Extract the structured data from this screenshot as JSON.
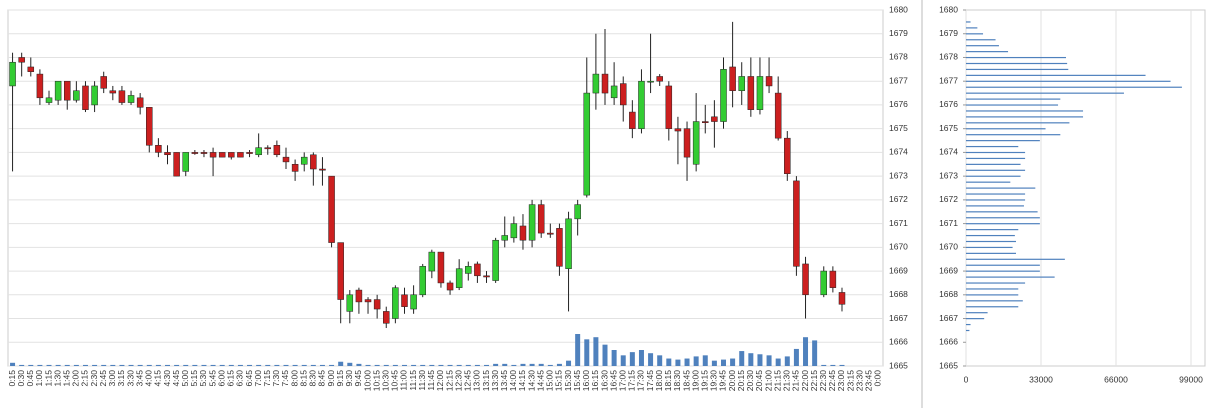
{
  "chart_data": {
    "type": "candlestick",
    "categories": [
      "0:15",
      "0:30",
      "0:45",
      "1:00",
      "1:15",
      "1:30",
      "1:45",
      "2:00",
      "2:15",
      "2:30",
      "2:45",
      "3:00",
      "3:15",
      "3:30",
      "3:45",
      "4:00",
      "4:15",
      "4:30",
      "4:45",
      "5:00",
      "5:15",
      "5:30",
      "5:45",
      "6:00",
      "6:15",
      "6:30",
      "6:45",
      "7:00",
      "7:15",
      "7:30",
      "7:45",
      "8:00",
      "8:15",
      "8:30",
      "8:45",
      "9:00",
      "9:15",
      "9:30",
      "9:45",
      "10:00",
      "10:15",
      "10:30",
      "10:45",
      "11:00",
      "11:15",
      "11:30",
      "11:45",
      "12:00",
      "12:15",
      "12:30",
      "12:45",
      "13:00",
      "13:15",
      "13:30",
      "13:45",
      "14:00",
      "14:15",
      "14:30",
      "14:45",
      "15:00",
      "15:15",
      "15:30",
      "15:45",
      "16:00",
      "16:15",
      "16:30",
      "16:45",
      "17:00",
      "17:15",
      "17:30",
      "17:45",
      "18:00",
      "18:15",
      "18:30",
      "18:45",
      "19:00",
      "19:15",
      "19:30",
      "19:45",
      "20:00",
      "20:15",
      "20:30",
      "20:45",
      "21:00",
      "21:15",
      "21:30",
      "21:45",
      "22:00",
      "22:15",
      "22:30",
      "22:45",
      "23:00",
      "23:15",
      "23:30",
      "23:45",
      "0:00"
    ],
    "open": [
      1676.8,
      1678,
      1677.6,
      1677.3,
      1676.1,
      1676.2,
      1677,
      1676.2,
      1676.8,
      1676,
      1677.2,
      1676.6,
      1676.6,
      1676.1,
      1676.3,
      1675.9,
      1674.3,
      1674,
      1674,
      1673.2,
      1674,
      1674,
      1674,
      1674,
      1674,
      1674,
      1674,
      1673.9,
      1674.2,
      1674.3,
      1673.8,
      1673.5,
      1673.5,
      1673.9,
      1673.3,
      1673,
      1670.2,
      1667.3,
      1668.2,
      1667.8,
      1667.8,
      1667.3,
      1667,
      1668,
      1667.4,
      1668,
      1669,
      1669.8,
      1668.5,
      1668.3,
      1668.9,
      1669.3,
      1668.8,
      1668.6,
      1670.3,
      1670.4,
      1670.9,
      1670.3,
      1671.8,
      1670.6,
      1670.8,
      1669.1,
      1671.2,
      1672.2,
      1676.5,
      1677.3,
      1676.3,
      1676.9,
      1675.7,
      1675,
      1677,
      1677.2,
      1676.8,
      1675,
      1675,
      1673.5,
      1675.3,
      1675.5,
      1675.3,
      1677.6,
      1676.6,
      1677.2,
      1675.8,
      1677.2,
      1676.5,
      1674.6,
      1672.8,
      1669.3,
      null,
      1668,
      1669,
      1668.1,
      null,
      null,
      null,
      null
    ],
    "high": [
      1678.2,
      1678.2,
      1678,
      1677.5,
      1676.6,
      1677,
      1677,
      1677,
      1677,
      1677,
      1677.4,
      1676.8,
      1676.8,
      1676.6,
      1676.5,
      1675.9,
      1674.6,
      1674.3,
      1674,
      1674,
      1674.1,
      1674.1,
      1674.2,
      1674,
      1674,
      1674,
      1674.1,
      1674.8,
      1674.3,
      1674.5,
      1674.2,
      1673.7,
      1674,
      1674,
      1673.8,
      1673,
      1670.2,
      1668.2,
      1668.3,
      1667.9,
      1668,
      1667.5,
      1668.4,
      1668.3,
      1668.4,
      1669.3,
      1669.9,
      1669.8,
      1668.6,
      1669.5,
      1669.4,
      1669.4,
      1669,
      1670.4,
      1671.3,
      1671.3,
      1671.4,
      1672,
      1672,
      1671,
      1671,
      1671.5,
      1672,
      1678,
      1679,
      1679.2,
      1677.8,
      1677.2,
      1676.2,
      1677.5,
      1679,
      1677.3,
      1677,
      1675.5,
      1675.3,
      1676.5,
      1676,
      1676.2,
      1678,
      1679.5,
      1677.8,
      1678,
      1678,
      1678,
      1677.2,
      1674.9,
      1673,
      1669.6,
      null,
      1669.2,
      1669.2,
      1668.3,
      null,
      null,
      null,
      null
    ],
    "low": [
      1673.2,
      1677.2,
      1677.2,
      1676,
      1676,
      1676,
      1675.8,
      1676.1,
      1675.7,
      1675.7,
      1676.5,
      1676.2,
      1676,
      1676,
      1675.6,
      1674,
      1673.8,
      1673.5,
      1673,
      1673,
      1673.9,
      1673.8,
      1673,
      1673.8,
      1673.7,
      1673.8,
      1673.8,
      1673.8,
      1673.9,
      1673.8,
      1673.3,
      1672.8,
      1673.2,
      1672.6,
      1672.6,
      1670,
      1666.8,
      1666.8,
      1667.2,
      1667.2,
      1667,
      1666.6,
      1666.8,
      1667.2,
      1667.2,
      1667.9,
      1668.7,
      1668.3,
      1668,
      1668.2,
      1668.6,
      1668.5,
      1668.5,
      1668.5,
      1670,
      1670.2,
      1669.9,
      1670,
      1670.4,
      1670.4,
      1668.8,
      1667.3,
      1670.5,
      1672.1,
      1675.8,
      1676,
      1676,
      1675.3,
      1674.6,
      1674.8,
      1676.5,
      1676.8,
      1674.5,
      1673.5,
      1672.8,
      1673.2,
      1674.8,
      1674.2,
      1675,
      1675.9,
      1676,
      1675.5,
      1675.6,
      1676.5,
      1674.5,
      1672.8,
      1668.8,
      1667,
      null,
      1667.9,
      1668.1,
      1667.3,
      null,
      null,
      null,
      null
    ],
    "close": [
      1677.8,
      1677.8,
      1677.4,
      1676.3,
      1676.3,
      1677,
      1676.2,
      1676.6,
      1675.8,
      1676.8,
      1676.7,
      1676.5,
      1676.1,
      1676.4,
      1675.9,
      1674.3,
      1674,
      1673.9,
      1673,
      1674,
      1673.95,
      1673.95,
      1673.8,
      1673.8,
      1673.8,
      1673.8,
      1673.95,
      1674.2,
      1674.15,
      1673.9,
      1673.6,
      1673.2,
      1673.8,
      1673.3,
      1673.25,
      1670.2,
      1667.8,
      1668,
      1667.7,
      1667.7,
      1667.4,
      1666.8,
      1668.3,
      1667.5,
      1668,
      1669.2,
      1669.8,
      1668.5,
      1668.2,
      1669.1,
      1669.2,
      1668.8,
      1668.75,
      1670.3,
      1670.5,
      1671,
      1670.3,
      1671.8,
      1670.6,
      1670.55,
      1669.2,
      1671.2,
      1671.8,
      1676.5,
      1677.3,
      1676.5,
      1676.8,
      1676,
      1675,
      1677,
      1677,
      1677,
      1675,
      1674.9,
      1673.8,
      1675.3,
      1675.25,
      1675.3,
      1677.5,
      1676.6,
      1677.2,
      1675.8,
      1677.2,
      1676.8,
      1674.6,
      1673.1,
      1669.2,
      1668,
      null,
      1669,
      1668.3,
      1667.6,
      null,
      null,
      null,
      null
    ],
    "volume": [
      300,
      100,
      100,
      100,
      100,
      100,
      100,
      100,
      100,
      100,
      100,
      100,
      100,
      100,
      100,
      100,
      100,
      100,
      100,
      100,
      100,
      100,
      100,
      100,
      100,
      100,
      100,
      100,
      100,
      100,
      100,
      100,
      100,
      100,
      100,
      100,
      400,
      300,
      200,
      100,
      100,
      100,
      100,
      100,
      100,
      100,
      100,
      100,
      100,
      100,
      100,
      100,
      100,
      200,
      200,
      100,
      200,
      200,
      200,
      100,
      200,
      500,
      3000,
      2500,
      2700,
      2000,
      1500,
      1000,
      1300,
      1500,
      1200,
      1000,
      700,
      600,
      700,
      900,
      1000,
      500,
      600,
      700,
      1400,
      1200,
      1100,
      1000,
      700,
      900,
      1600,
      2700,
      2400,
      100,
      100,
      100,
      null,
      null,
      null,
      null
    ],
    "up_color": "#33cc33",
    "down_color": "#cc1f1f",
    "volume_color": "#4f81bd",
    "ylim": [
      1665,
      1680
    ],
    "yticks": [
      1665,
      1666,
      1667,
      1668,
      1669,
      1670,
      1671,
      1672,
      1673,
      1674,
      1675,
      1676,
      1677,
      1678,
      1679,
      1680
    ],
    "grid": true,
    "profile": {
      "prices": [
        1679.5,
        1679.25,
        1679,
        1678.75,
        1678.5,
        1678.25,
        1678,
        1677.75,
        1677.5,
        1677.25,
        1677,
        1676.75,
        1676.5,
        1676.25,
        1676,
        1675.75,
        1675.5,
        1675.25,
        1675,
        1674.75,
        1674.5,
        1674.25,
        1674,
        1673.75,
        1673.5,
        1673.25,
        1673,
        1672.75,
        1672.5,
        1672.25,
        1672,
        1671.75,
        1671.5,
        1671.25,
        1671,
        1670.75,
        1670.5,
        1670.25,
        1670,
        1669.75,
        1669.5,
        1669.25,
        1669,
        1668.75,
        1668.5,
        1668.25,
        1668,
        1667.75,
        1667.5,
        1667.25,
        1667,
        1666.75,
        1666.5
      ],
      "values": [
        2000,
        5000,
        7500,
        13000,
        14500,
        18500,
        44000,
        44500,
        45000,
        79000,
        90000,
        95000,
        69500,
        41500,
        40500,
        51500,
        51500,
        45500,
        35000,
        41500,
        32500,
        23000,
        26000,
        26000,
        24000,
        26000,
        24000,
        19500,
        30500,
        26000,
        26000,
        25500,
        31500,
        32500,
        32500,
        23000,
        21500,
        22000,
        20500,
        22000,
        43500,
        32500,
        32500,
        39000,
        26000,
        23000,
        23000,
        25000,
        23000,
        9500,
        8000,
        2000,
        1500
      ],
      "color": "#4f81bd",
      "xlim": [
        0,
        99000
      ],
      "xticks": [
        0,
        33000,
        66000,
        99000
      ]
    }
  }
}
